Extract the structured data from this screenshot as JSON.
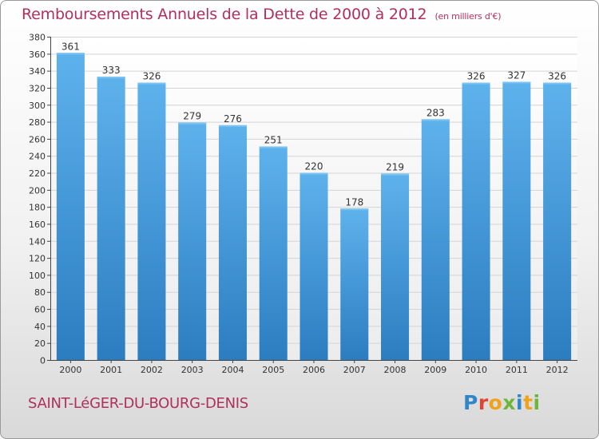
{
  "title": {
    "main": "Remboursements Annuels de la Dette de 2000 à 2012",
    "unit": "(en milliers d'€)"
  },
  "footer": {
    "commune": "SAINT-LéGER-DU-BOURG-DENIS",
    "logo_text": "Proxiti"
  },
  "colors": {
    "title": "#b0305a",
    "bar_light": "#5eb2ec",
    "bar_dark": "#2b7dc0",
    "logo": [
      "#2f86c9",
      "#f0a21e",
      "#6fb53c",
      "#e3432f"
    ]
  },
  "chart_data": {
    "type": "bar",
    "title": "Remboursements Annuels de la Dette de 2000 à 2012",
    "subtitle": "(en milliers d'€)",
    "categories": [
      "2000",
      "2001",
      "2002",
      "2003",
      "2004",
      "2005",
      "2006",
      "2007",
      "2008",
      "2009",
      "2010",
      "2011",
      "2012"
    ],
    "values": [
      361,
      333,
      326,
      279,
      276,
      251,
      220,
      178,
      219,
      283,
      326,
      327,
      326
    ],
    "ylim": [
      0,
      380
    ],
    "ytick_step": 20,
    "grid": true,
    "legend": "none"
  }
}
